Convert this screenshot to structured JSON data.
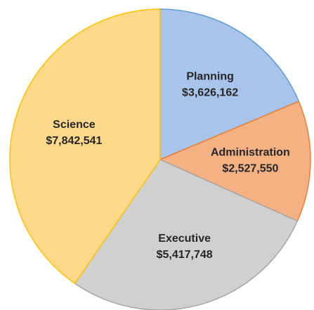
{
  "chart_data": {
    "type": "pie",
    "categories": [
      "Planning",
      "Administration",
      "Executive",
      "Science"
    ],
    "values": [
      3626162,
      2527550,
      5417748,
      7842541
    ],
    "value_labels": [
      "$3,626,162",
      "$2,527,550",
      "$5,417,748",
      "$7,842,541"
    ],
    "colors": [
      "#a9c4eb",
      "#f4b183",
      "#d0d0d0",
      "#ffd98a"
    ],
    "edge_colors": [
      "#5b9bd5",
      "#ed7d31",
      "#a5a5a5",
      "#ffc000"
    ]
  }
}
